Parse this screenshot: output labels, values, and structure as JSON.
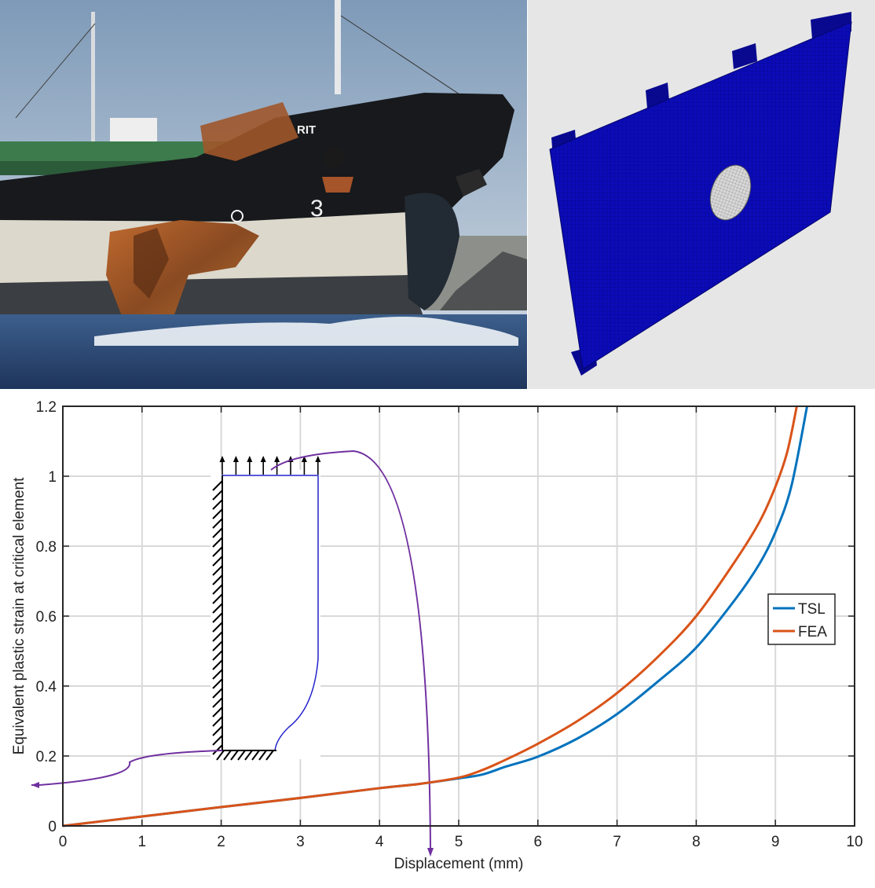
{
  "photo": {
    "ship_name_fragment": "RIT",
    "hull_mark": "3"
  },
  "colors": {
    "tsl": "#0072BD",
    "fea": "#D95319",
    "inset": "#7030A0",
    "mesh": "#0a0ab4",
    "sky": "#9fb7cc",
    "sea": "#2f4c7a"
  },
  "chart_data": {
    "type": "line",
    "xlabel": "Displacement (mm)",
    "ylabel": "Equivalent plastic strain at critical element",
    "xlim": [
      0,
      10
    ],
    "ylim": [
      0,
      1.2
    ],
    "xticks": [
      "0",
      "1",
      "2",
      "3",
      "4",
      "5",
      "6",
      "7",
      "8",
      "9",
      "10"
    ],
    "yticks": [
      "0",
      "0.2",
      "0.4",
      "0.6",
      "0.8",
      "1",
      "1.2"
    ],
    "grid": true,
    "legend_position": "right-middle",
    "series": [
      {
        "name": "TSL",
        "color": "#0072BD",
        "x": [
          0,
          1,
          2,
          3,
          4,
          4.5,
          5,
          5.3,
          5.6,
          6,
          6.5,
          7,
          7.5,
          8,
          8.5,
          8.8,
          9,
          9.2,
          9.4
        ],
        "y": [
          0,
          0.027,
          0.054,
          0.08,
          0.108,
          0.12,
          0.136,
          0.147,
          0.17,
          0.198,
          0.25,
          0.32,
          0.41,
          0.51,
          0.65,
          0.75,
          0.84,
          0.97,
          1.2
        ]
      },
      {
        "name": "FEA",
        "color": "#D95319",
        "x": [
          0,
          1,
          2,
          3,
          4,
          4.5,
          5,
          5.3,
          5.6,
          6,
          6.5,
          7,
          7.5,
          8,
          8.5,
          8.8,
          9,
          9.15,
          9.27
        ],
        "y": [
          0,
          0.027,
          0.054,
          0.08,
          0.108,
          0.12,
          0.138,
          0.16,
          0.19,
          0.235,
          0.3,
          0.38,
          0.48,
          0.6,
          0.76,
          0.87,
          0.97,
          1.07,
          1.2
        ]
      }
    ]
  }
}
